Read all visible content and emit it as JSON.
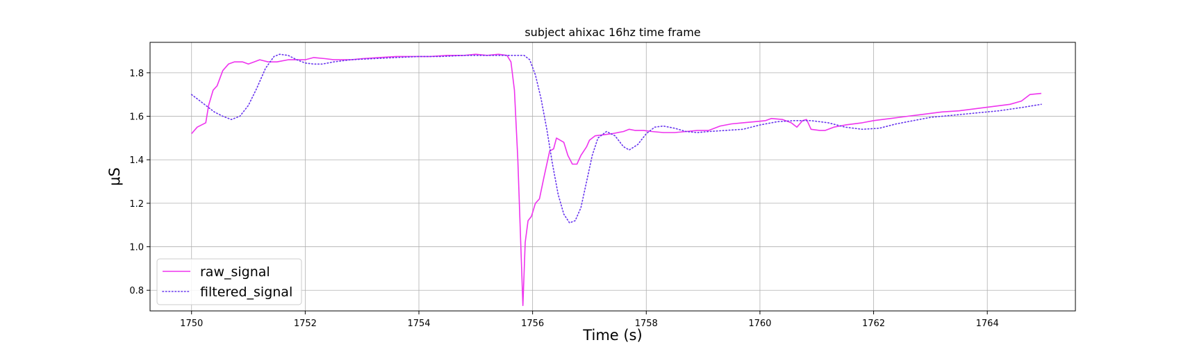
{
  "chart_data": {
    "type": "line",
    "title": "subject ahixac 16hz time frame",
    "xlabel": "Time (s)",
    "ylabel": "μS",
    "xlim": [
      1749.27,
      1765.55
    ],
    "ylim": [
      0.705,
      1.94
    ],
    "xticks": [
      1750,
      1752,
      1754,
      1756,
      1758,
      1760,
      1762,
      1764
    ],
    "yticks": [
      0.8,
      1.0,
      1.2,
      1.4,
      1.6,
      1.8
    ],
    "grid": true,
    "legend_position": "lower-left",
    "series": [
      {
        "name": "raw_signal",
        "color": "#ee33ee",
        "style": "solid",
        "points": [
          [
            1750.0,
            1.52
          ],
          [
            1750.1,
            1.55
          ],
          [
            1750.25,
            1.57
          ],
          [
            1750.3,
            1.65
          ],
          [
            1750.38,
            1.72
          ],
          [
            1750.45,
            1.74
          ],
          [
            1750.55,
            1.81
          ],
          [
            1750.65,
            1.84
          ],
          [
            1750.75,
            1.85
          ],
          [
            1750.9,
            1.85
          ],
          [
            1751.0,
            1.84
          ],
          [
            1751.1,
            1.85
          ],
          [
            1751.2,
            1.86
          ],
          [
            1751.35,
            1.85
          ],
          [
            1751.5,
            1.85
          ],
          [
            1751.7,
            1.86
          ],
          [
            1751.85,
            1.86
          ],
          [
            1752.0,
            1.86
          ],
          [
            1752.15,
            1.87
          ],
          [
            1752.35,
            1.865
          ],
          [
            1752.5,
            1.86
          ],
          [
            1752.8,
            1.86
          ],
          [
            1753.0,
            1.865
          ],
          [
            1753.3,
            1.87
          ],
          [
            1753.6,
            1.875
          ],
          [
            1753.9,
            1.875
          ],
          [
            1754.2,
            1.875
          ],
          [
            1754.5,
            1.88
          ],
          [
            1754.8,
            1.88
          ],
          [
            1755.0,
            1.885
          ],
          [
            1755.2,
            1.88
          ],
          [
            1755.4,
            1.885
          ],
          [
            1755.55,
            1.88
          ],
          [
            1755.62,
            1.85
          ],
          [
            1755.68,
            1.72
          ],
          [
            1755.74,
            1.4
          ],
          [
            1755.8,
            0.95
          ],
          [
            1755.83,
            0.73
          ],
          [
            1755.87,
            1.02
          ],
          [
            1755.92,
            1.12
          ],
          [
            1755.98,
            1.14
          ],
          [
            1756.05,
            1.2
          ],
          [
            1756.12,
            1.22
          ],
          [
            1756.2,
            1.32
          ],
          [
            1756.3,
            1.44
          ],
          [
            1756.37,
            1.45
          ],
          [
            1756.42,
            1.5
          ],
          [
            1756.55,
            1.48
          ],
          [
            1756.62,
            1.42
          ],
          [
            1756.7,
            1.38
          ],
          [
            1756.78,
            1.38
          ],
          [
            1756.85,
            1.42
          ],
          [
            1756.95,
            1.46
          ],
          [
            1757.0,
            1.49
          ],
          [
            1757.1,
            1.51
          ],
          [
            1757.25,
            1.515
          ],
          [
            1757.4,
            1.52
          ],
          [
            1757.6,
            1.53
          ],
          [
            1757.7,
            1.54
          ],
          [
            1757.8,
            1.535
          ],
          [
            1757.95,
            1.535
          ],
          [
            1758.1,
            1.53
          ],
          [
            1758.3,
            1.525
          ],
          [
            1758.5,
            1.525
          ],
          [
            1758.7,
            1.53
          ],
          [
            1758.9,
            1.535
          ],
          [
            1759.1,
            1.535
          ],
          [
            1759.3,
            1.555
          ],
          [
            1759.5,
            1.565
          ],
          [
            1759.7,
            1.57
          ],
          [
            1759.9,
            1.575
          ],
          [
            1760.1,
            1.58
          ],
          [
            1760.2,
            1.59
          ],
          [
            1760.4,
            1.585
          ],
          [
            1760.55,
            1.57
          ],
          [
            1760.65,
            1.55
          ],
          [
            1760.75,
            1.58
          ],
          [
            1760.82,
            1.585
          ],
          [
            1760.9,
            1.54
          ],
          [
            1761.05,
            1.535
          ],
          [
            1761.15,
            1.535
          ],
          [
            1761.3,
            1.55
          ],
          [
            1761.5,
            1.56
          ],
          [
            1761.8,
            1.57
          ],
          [
            1762.0,
            1.58
          ],
          [
            1762.3,
            1.59
          ],
          [
            1762.6,
            1.6
          ],
          [
            1762.9,
            1.61
          ],
          [
            1763.2,
            1.62
          ],
          [
            1763.5,
            1.625
          ],
          [
            1763.8,
            1.635
          ],
          [
            1764.1,
            1.645
          ],
          [
            1764.4,
            1.655
          ],
          [
            1764.6,
            1.67
          ],
          [
            1764.75,
            1.7
          ],
          [
            1764.95,
            1.705
          ]
        ]
      },
      {
        "name": "filtered_signal",
        "color": "#6633ee",
        "style": "dotted",
        "points": [
          [
            1750.0,
            1.7
          ],
          [
            1750.2,
            1.66
          ],
          [
            1750.4,
            1.62
          ],
          [
            1750.55,
            1.6
          ],
          [
            1750.7,
            1.585
          ],
          [
            1750.85,
            1.6
          ],
          [
            1751.0,
            1.65
          ],
          [
            1751.15,
            1.73
          ],
          [
            1751.3,
            1.82
          ],
          [
            1751.45,
            1.875
          ],
          [
            1751.55,
            1.885
          ],
          [
            1751.7,
            1.88
          ],
          [
            1751.85,
            1.86
          ],
          [
            1752.0,
            1.845
          ],
          [
            1752.15,
            1.84
          ],
          [
            1752.3,
            1.84
          ],
          [
            1752.5,
            1.85
          ],
          [
            1752.8,
            1.86
          ],
          [
            1753.2,
            1.865
          ],
          [
            1753.6,
            1.87
          ],
          [
            1754.0,
            1.875
          ],
          [
            1754.4,
            1.875
          ],
          [
            1754.8,
            1.88
          ],
          [
            1755.2,
            1.88
          ],
          [
            1755.6,
            1.88
          ],
          [
            1755.85,
            1.88
          ],
          [
            1755.95,
            1.86
          ],
          [
            1756.05,
            1.79
          ],
          [
            1756.15,
            1.68
          ],
          [
            1756.25,
            1.54
          ],
          [
            1756.35,
            1.38
          ],
          [
            1756.45,
            1.24
          ],
          [
            1756.55,
            1.15
          ],
          [
            1756.65,
            1.11
          ],
          [
            1756.75,
            1.12
          ],
          [
            1756.85,
            1.18
          ],
          [
            1756.95,
            1.3
          ],
          [
            1757.05,
            1.42
          ],
          [
            1757.15,
            1.5
          ],
          [
            1757.3,
            1.53
          ],
          [
            1757.45,
            1.51
          ],
          [
            1757.6,
            1.46
          ],
          [
            1757.7,
            1.445
          ],
          [
            1757.85,
            1.47
          ],
          [
            1758.0,
            1.52
          ],
          [
            1758.15,
            1.55
          ],
          [
            1758.3,
            1.555
          ],
          [
            1758.5,
            1.545
          ],
          [
            1758.7,
            1.53
          ],
          [
            1758.9,
            1.525
          ],
          [
            1759.1,
            1.53
          ],
          [
            1759.4,
            1.535
          ],
          [
            1759.7,
            1.54
          ],
          [
            1760.0,
            1.56
          ],
          [
            1760.3,
            1.575
          ],
          [
            1760.6,
            1.58
          ],
          [
            1760.9,
            1.58
          ],
          [
            1761.2,
            1.57
          ],
          [
            1761.5,
            1.55
          ],
          [
            1761.8,
            1.54
          ],
          [
            1762.1,
            1.545
          ],
          [
            1762.4,
            1.565
          ],
          [
            1762.7,
            1.58
          ],
          [
            1763.0,
            1.595
          ],
          [
            1763.4,
            1.605
          ],
          [
            1763.8,
            1.615
          ],
          [
            1764.2,
            1.625
          ],
          [
            1764.6,
            1.64
          ],
          [
            1764.95,
            1.655
          ]
        ]
      }
    ]
  }
}
